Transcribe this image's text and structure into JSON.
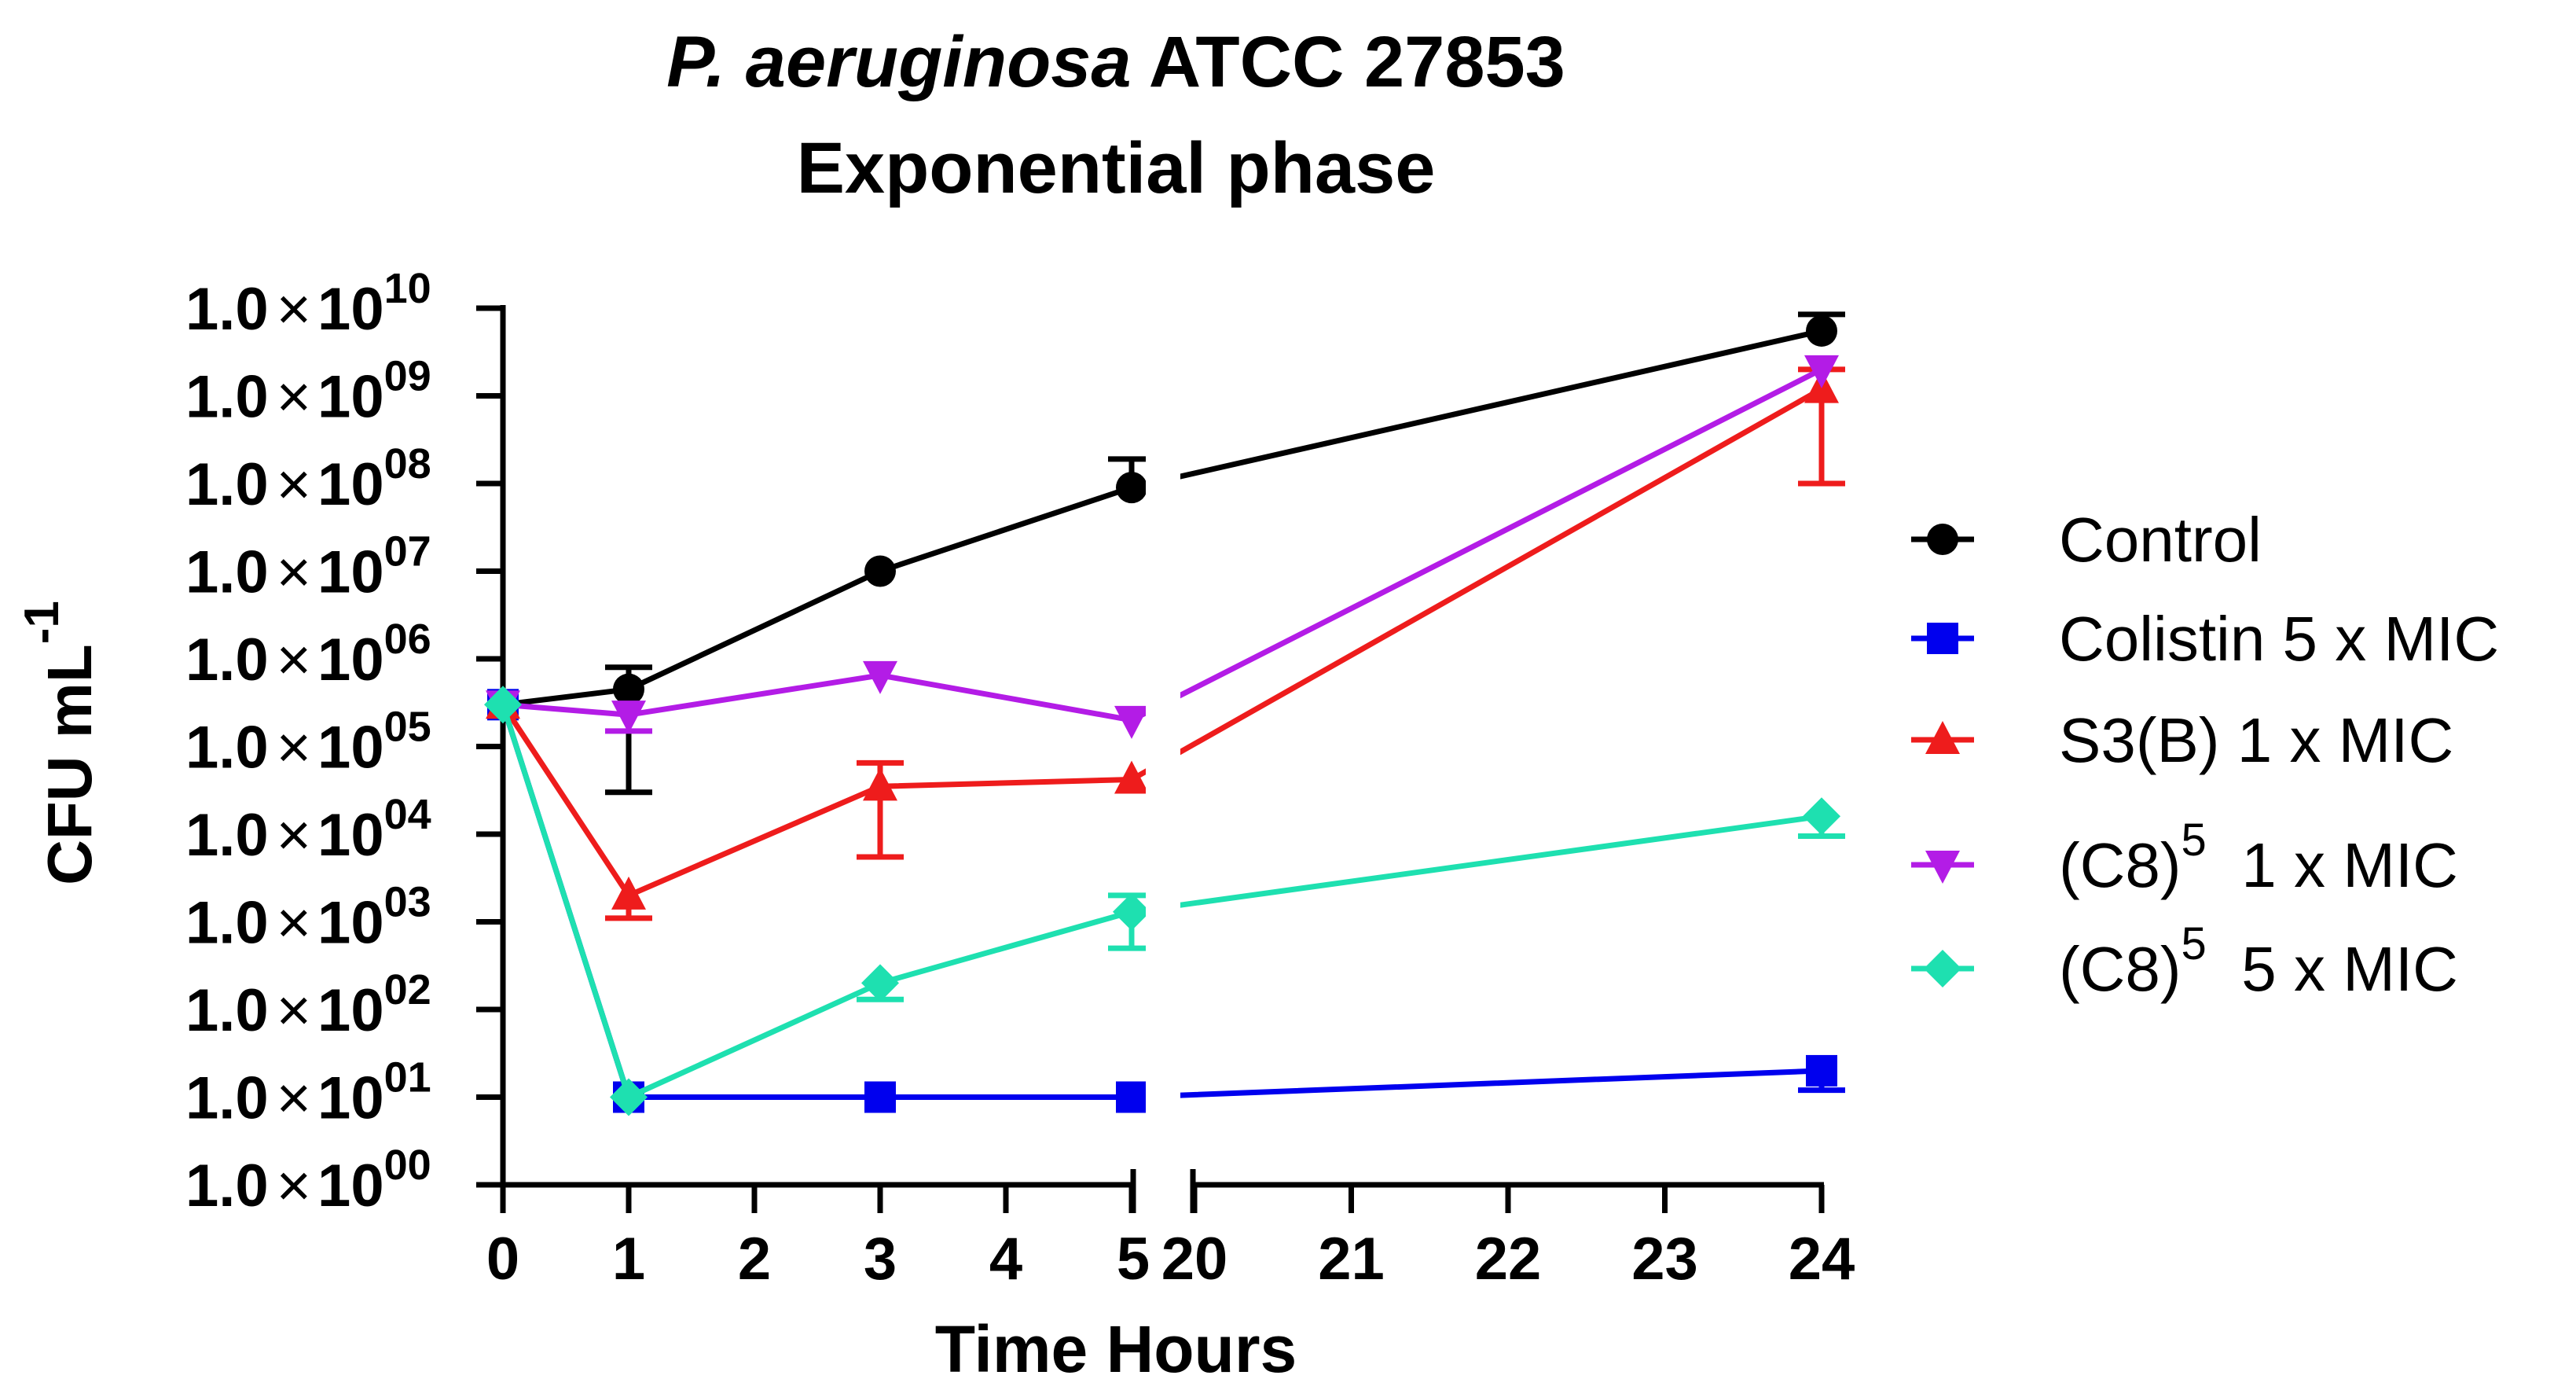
{
  "chart_data": {
    "type": "line",
    "title_italic": "P. aeruginosa",
    "title_rest": " ATCC 27853",
    "subtitle": "Exponential phase",
    "xlabel": "Time Hours",
    "ylabel": "CFU mL",
    "ylabel_sup": "-1",
    "y_scale": "log",
    "ylim": [
      1,
      10000000000
    ],
    "x_segments": [
      {
        "range": [
          0,
          5
        ],
        "ticks": [
          "0",
          "1",
          "2",
          "3",
          "4",
          "5"
        ],
        "tick_values": [
          0,
          1,
          2,
          3,
          4,
          5
        ]
      },
      {
        "range": [
          20,
          24
        ],
        "ticks": [
          "20",
          "21",
          "22",
          "23",
          "24"
        ],
        "tick_values": [
          20,
          21,
          22,
          23,
          24
        ]
      }
    ],
    "y_ticks": [
      {
        "value": 1,
        "mantissa": "1.0",
        "times": "×",
        "base": "10",
        "exp": "00"
      },
      {
        "value": 10,
        "mantissa": "1.0",
        "times": "×",
        "base": "10",
        "exp": "01"
      },
      {
        "value": 100,
        "mantissa": "1.0",
        "times": "×",
        "base": "10",
        "exp": "02"
      },
      {
        "value": 1000,
        "mantissa": "1.0",
        "times": "×",
        "base": "10",
        "exp": "03"
      },
      {
        "value": 10000,
        "mantissa": "1.0",
        "times": "×",
        "base": "10",
        "exp": "04"
      },
      {
        "value": 100000,
        "mantissa": "1.0",
        "times": "×",
        "base": "10",
        "exp": "05"
      },
      {
        "value": 1000000,
        "mantissa": "1.0",
        "times": "×",
        "base": "10",
        "exp": "06"
      },
      {
        "value": 10000000,
        "mantissa": "1.0",
        "times": "×",
        "base": "10",
        "exp": "07"
      },
      {
        "value": 100000000,
        "mantissa": "1.0",
        "times": "×",
        "base": "10",
        "exp": "08"
      },
      {
        "value": 1000000000,
        "mantissa": "1.0",
        "times": "×",
        "base": "10",
        "exp": "09"
      },
      {
        "value": 10000000000,
        "mantissa": "1.0",
        "times": "×",
        "base": "10",
        "exp": "10"
      }
    ],
    "legend_position": "right",
    "series": [
      {
        "name": "Control",
        "legend_base": "Control",
        "legend_sup": "",
        "legend_rest": "",
        "color": "#000000",
        "marker": "circle",
        "x": [
          0,
          1,
          3,
          5,
          24
        ],
        "y": [
          300000,
          450000,
          10000000,
          90000000,
          5500000000
        ],
        "err_low": [
          null,
          30000,
          null,
          null,
          null
        ],
        "err_high": [
          null,
          800000,
          null,
          190000000,
          8500000000
        ]
      },
      {
        "name": "Colistin 5 x MIC",
        "legend_base": "Colistin 5 x MIC",
        "legend_sup": "",
        "legend_rest": "",
        "color": "#0000ee",
        "marker": "square",
        "x": [
          0,
          1,
          3,
          5,
          24
        ],
        "y": [
          300000,
          10,
          10,
          10,
          20
        ],
        "err_low": [
          null,
          null,
          null,
          null,
          12
        ],
        "err_high": [
          null,
          null,
          null,
          null,
          null
        ]
      },
      {
        "name": "S3(B) 1 x MIC",
        "legend_base": "S3(B) 1 x MIC",
        "legend_sup": "",
        "legend_rest": "",
        "color": "#ee1c1c",
        "marker": "triangle-up",
        "x": [
          0,
          1,
          3,
          5,
          24
        ],
        "y": [
          300000,
          2000,
          35000,
          42000,
          1200000000
        ],
        "err_low": [
          null,
          1100,
          5500,
          null,
          100000000
        ],
        "err_high": [
          null,
          null,
          65000,
          null,
          2000000000
        ]
      },
      {
        "name": "(C8)5 1 x MIC",
        "legend_base": "(C8)",
        "legend_sup": "5",
        "legend_rest": "  1 x MIC",
        "color": "#b31ce6",
        "marker": "triangle-down",
        "x": [
          0,
          1,
          3,
          5,
          24
        ],
        "y": [
          300000,
          230000,
          650000,
          200000,
          2000000000
        ],
        "err_low": [
          null,
          150000,
          null,
          null,
          null
        ],
        "err_high": [
          null,
          null,
          null,
          null,
          null
        ]
      },
      {
        "name": "(C8)5 5 x MIC",
        "legend_base": "(C8)",
        "legend_sup": "5",
        "legend_rest": "  5 x MIC",
        "color": "#1ee0b0",
        "marker": "diamond",
        "x": [
          0,
          1,
          3,
          5,
          24
        ],
        "y": [
          300000,
          10,
          200,
          1300,
          16000
        ],
        "err_low": [
          null,
          null,
          130,
          500,
          9500
        ],
        "err_high": [
          null,
          null,
          null,
          2000,
          null
        ]
      }
    ]
  }
}
